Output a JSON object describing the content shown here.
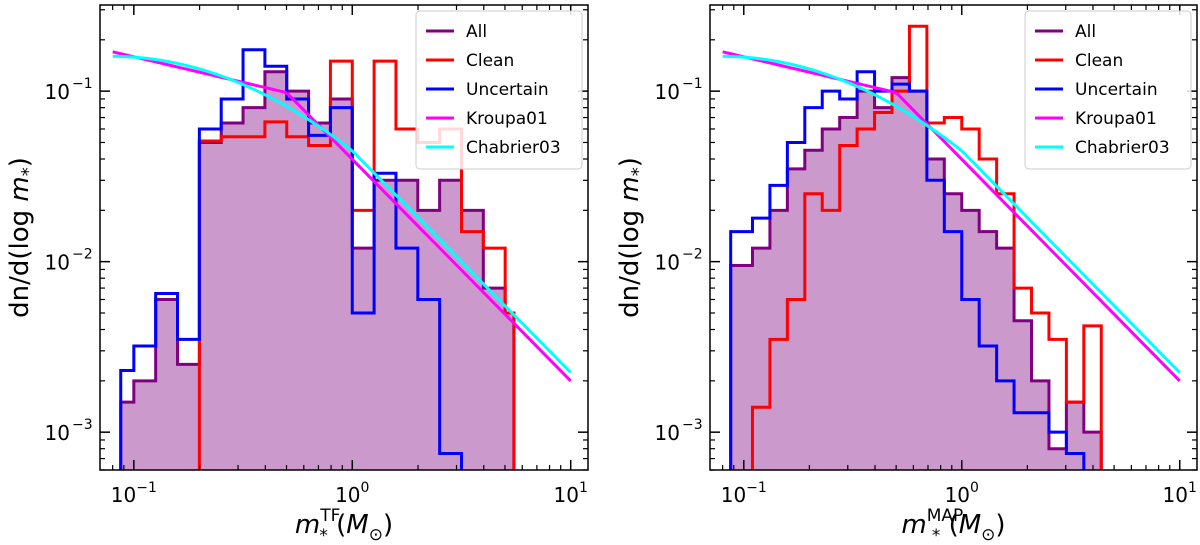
{
  "chart_data": [
    {
      "type": "histogram-step",
      "panel": "left",
      "xlabel_main": "m",
      "xlabel_sub": "*",
      "xlabel_sup": "TF",
      "xlabel_units": "(M",
      "xlabel_units_sub": "⊙",
      "xlabel_close": ")",
      "ylabel_prefix": "dn/d(log ",
      "ylabel_var": "m",
      "ylabel_sub": "*",
      "ylabel_close": ")",
      "xscale": "log",
      "yscale": "log",
      "xlim": [
        0.07,
        12
      ],
      "ylim": [
        0.0006,
        0.32
      ],
      "xticks": [
        {
          "value": 0.1,
          "base": "10",
          "exp": "−1"
        },
        {
          "value": 1,
          "base": "10",
          "exp": "0"
        },
        {
          "value": 10,
          "base": "10",
          "exp": "1"
        }
      ],
      "yticks": [
        {
          "value": 0.001,
          "base": "10",
          "exp": "−3"
        },
        {
          "value": 0.01,
          "base": "10",
          "exp": "−2"
        },
        {
          "value": 0.1,
          "base": "10",
          "exp": "−1"
        }
      ],
      "bin_edges_log10": [
        -1.06,
        -1.0,
        -0.9,
        -0.8,
        -0.7,
        -0.6,
        -0.5,
        -0.4,
        -0.3,
        -0.2,
        -0.1,
        0.0,
        0.1,
        0.2,
        0.3,
        0.4,
        0.5,
        0.6,
        0.7,
        0.74
      ],
      "series": [
        {
          "name": "All",
          "color": "#800080",
          "filled": true,
          "values": [
            0.0015,
            0.002,
            0.006,
            0.0025,
            0.05,
            0.065,
            0.08,
            0.13,
            0.1,
            0.065,
            0.09,
            0.012,
            0.03,
            0.03,
            0.02,
            0.03,
            0.02,
            0.007,
            0.005
          ]
        },
        {
          "name": "Clean",
          "color": "#ff0000",
          "values": [
            0.0,
            0.0,
            0.0,
            0.0,
            0.051,
            0.054,
            0.054,
            0.066,
            0.054,
            0.048,
            0.15,
            0.02,
            0.15,
            0.06,
            0.05,
            0.06,
            0.015,
            0.012,
            0.005
          ]
        },
        {
          "name": "Uncertain",
          "color": "#0000ff",
          "values": [
            0.0023,
            0.0032,
            0.0065,
            0.0035,
            0.06,
            0.09,
            0.175,
            0.14,
            0.09,
            0.055,
            0.08,
            0.005,
            0.033,
            0.012,
            0.006,
            0.00075,
            0.0,
            0.0,
            0.0
          ]
        }
      ],
      "curves": [
        {
          "name": "Kroupa01",
          "color": "#ff00ff"
        },
        {
          "name": "Chabrier03",
          "color": "#00ffff"
        }
      ]
    },
    {
      "type": "histogram-step",
      "panel": "right",
      "xlabel_main": "m",
      "xlabel_sub": "*",
      "xlabel_sup": "MAP",
      "xlabel_units": "(M",
      "xlabel_units_sub": "⊙",
      "xlabel_close": ")",
      "ylabel_prefix": "dn/d(log ",
      "ylabel_var": "m",
      "ylabel_sub": "*",
      "ylabel_close": ")",
      "xscale": "log",
      "yscale": "log",
      "xlim": [
        0.07,
        12
      ],
      "ylim": [
        0.0006,
        0.32
      ],
      "xticks": [
        {
          "value": 0.1,
          "base": "10",
          "exp": "−1"
        },
        {
          "value": 1,
          "base": "10",
          "exp": "0"
        },
        {
          "value": 10,
          "base": "10",
          "exp": "1"
        }
      ],
      "yticks": [
        {
          "value": 0.001,
          "base": "10",
          "exp": "−3"
        },
        {
          "value": 0.01,
          "base": "10",
          "exp": "−2"
        },
        {
          "value": 0.1,
          "base": "10",
          "exp": "−1"
        }
      ],
      "bin_edges_log10": [
        -1.06,
        -0.96,
        -0.88,
        -0.8,
        -0.72,
        -0.64,
        -0.56,
        -0.48,
        -0.4,
        -0.32,
        -0.24,
        -0.16,
        -0.08,
        0.0,
        0.08,
        0.16,
        0.24,
        0.32,
        0.4,
        0.48,
        0.56,
        0.64
      ],
      "series": [
        {
          "name": "All",
          "color": "#800080",
          "filled": true,
          "values": [
            0.0095,
            0.012,
            0.02,
            0.035,
            0.045,
            0.06,
            0.07,
            0.1,
            0.08,
            0.12,
            0.1,
            0.04,
            0.025,
            0.02,
            0.015,
            0.012,
            0.0045,
            0.002,
            0.0008,
            0.0015,
            0.001
          ]
        },
        {
          "name": "Clean",
          "color": "#ff0000",
          "values": [
            0.0,
            0.0014,
            0.0035,
            0.006,
            0.025,
            0.02,
            0.048,
            0.06,
            0.075,
            0.1,
            0.24,
            0.065,
            0.07,
            0.06,
            0.04,
            0.025,
            0.007,
            0.005,
            0.0035,
            0.0015,
            0.0042
          ]
        },
        {
          "name": "Uncertain",
          "color": "#0000ff",
          "values": [
            0.015,
            0.018,
            0.028,
            0.05,
            0.08,
            0.1,
            0.09,
            0.13,
            0.1,
            0.11,
            0.1,
            0.03,
            0.015,
            0.006,
            0.0032,
            0.002,
            0.0013,
            0.0013,
            0.001,
            0.00075,
            0.0
          ]
        }
      ],
      "curves": [
        {
          "name": "Kroupa01",
          "color": "#ff00ff"
        },
        {
          "name": "Chabrier03",
          "color": "#00ffff"
        }
      ]
    }
  ]
}
